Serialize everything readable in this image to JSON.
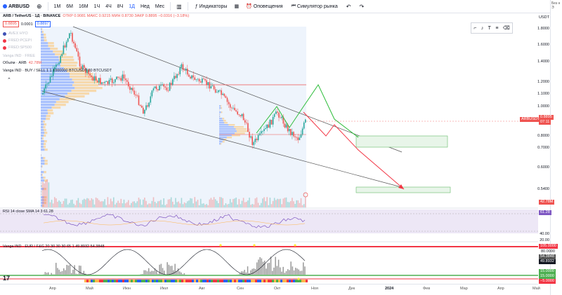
{
  "topbar": {
    "symbol": "ARBUSD",
    "timeframes": [
      "1М",
      "6М",
      "16М",
      "1Ч",
      "4Ч",
      "8Ч",
      "1Д",
      "Нед",
      "Мес"
    ],
    "indicators_label": "Индикаторы",
    "alerts_label": "Оповещения",
    "replay_label": "Симулятор рынка"
  },
  "right_edge": {
    "line1": "Без н",
    "line2": "Э"
  },
  "legend": {
    "title": "ARB / TetherUS · 1Д · BINANCE",
    "ohlc": "ОТКР 0.9081 МАКС 0.9215 МИН 0.8730 ЗАКР 0.8895 −0.0316 (−3.18%)",
    "sell_price": "0.8895",
    "spread": "0.0001",
    "buy_price": "0.8897",
    "ind1": "AVEX HYO",
    "ind2": "FRED:PCEPI",
    "ind3": "FRED:SP500",
    "ind4": "Vanga IND · FREE",
    "volume": "Объём · ARB",
    "volume_val": "42.78M",
    "vanga": "Vanga IND · BUY / SELL 1 1 1000000 BTCUSDT 20 BTCUSDT"
  },
  "price_axis": {
    "currency": "USDT",
    "ticks": [
      "1.8000",
      "1.6000",
      "1.4000",
      "1.2000",
      "1.1000",
      "1.0000",
      "0.9000",
      "0.8000",
      "0.7000",
      "0.6000",
      "0.5400"
    ],
    "current_tag": "ARBUSDT",
    "current_price": "0.8895",
    "countdown": "07:11",
    "volume_tag": "42.78M"
  },
  "rsi": {
    "label": "RSI 14 close SMA 14 3 61.28",
    "value_tag": "61.28",
    "ticks": [
      "60.00",
      "40.00",
      "20.00"
    ]
  },
  "vanga_bottom": {
    "label": "Vanga IND · EUR / F&G 20 30 30 30 65 1 49.8932 54.3848",
    "ticks": [
      "105.0000",
      "80.0000",
      "54.3848",
      "49.8932",
      "15.0000",
      "15.0000",
      "−5.0000"
    ]
  },
  "xaxis": [
    "Апр",
    "Май",
    "Июн",
    "Июл",
    "Авг",
    "Сен",
    "Окт",
    "Ноя",
    "Дек",
    "2024",
    "Фев",
    "Мар",
    "Апр",
    "Май"
  ],
  "colors": {
    "up": "#26a69a",
    "down": "#ef5350",
    "projection_green": "#2dbd3a",
    "projection_red": "#f23645",
    "zone_green": "#e8f5e9",
    "rsi_band": "#ede7f6",
    "vol_profile": "#2962ff",
    "vol_profile_up": "#ffb74d"
  }
}
